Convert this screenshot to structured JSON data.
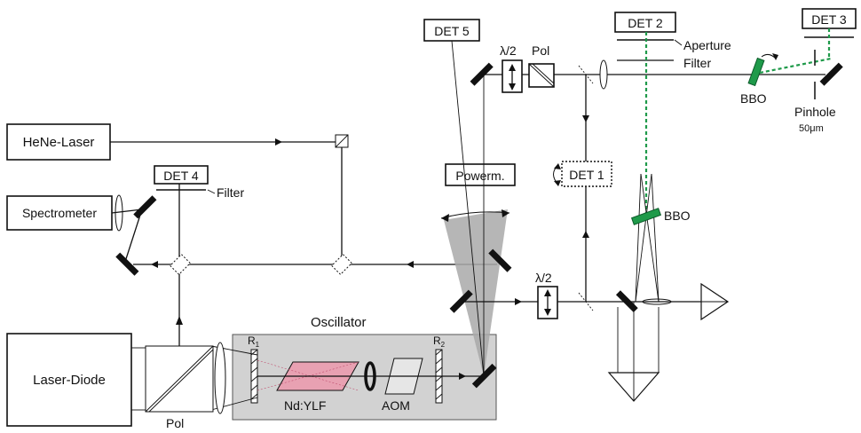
{
  "labels": {
    "det1": "DET 1",
    "det2": "DET 2",
    "det3": "DET 3",
    "det4": "DET 4",
    "det5": "DET 5",
    "hene": "HeNe-Laser",
    "spectrometer": "Spectrometer",
    "laser_diode": "Laser-Diode",
    "oscillator": "Oscillator",
    "ndylf": "Nd:YLF",
    "aom": "AOM",
    "r1": "R",
    "r1_sub": "1",
    "r2": "R",
    "r2_sub": "2",
    "pol_bottom": "Pol",
    "pol_top": "Pol",
    "lambda_top": "λ/2",
    "lambda_bottom": "λ/2",
    "powerm": "Powerm.",
    "filter_det4": "Filter",
    "aperture": "Aperture",
    "filter_top": "Filter",
    "bbo_right": "BBO",
    "bbo_center": "BBO",
    "pinhole": "Pinhole",
    "pinhole_size": "50μm"
  },
  "colors": {
    "green_beam": "#1f9a4a",
    "crystal_pink": "#e8a1b2",
    "oscillator_bg": "#d2d2d2",
    "powermeter_fan": "#a9a9a9"
  }
}
